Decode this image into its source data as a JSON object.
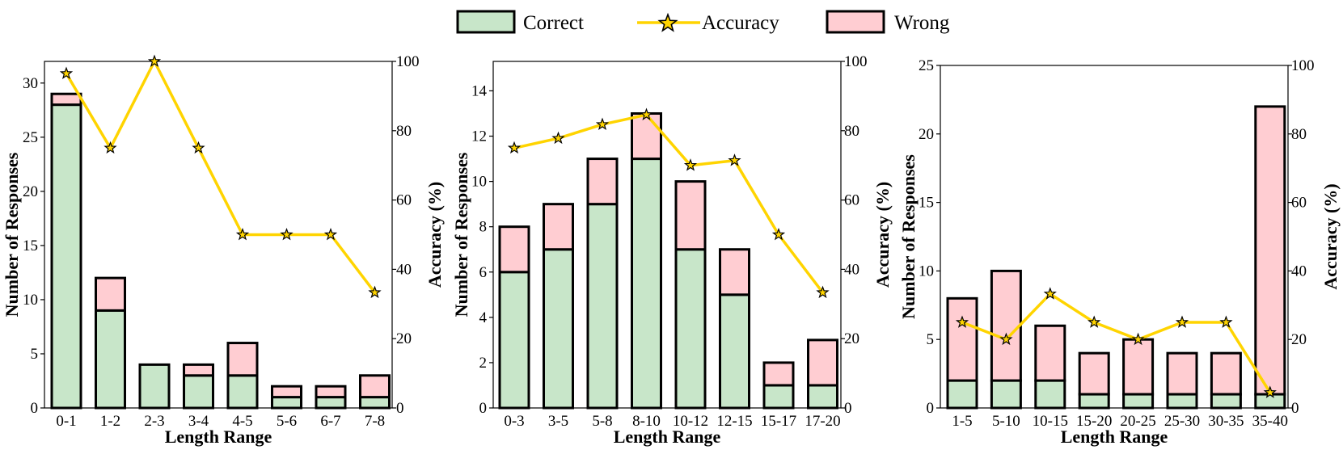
{
  "legend": {
    "correct": "Correct",
    "accuracy": "Accuracy",
    "wrong": "Wrong"
  },
  "colors": {
    "correct": "#c8e6c9",
    "wrong": "#ffcdd2",
    "accuracy": "#ffd400",
    "outline": "#000000"
  },
  "chart_data": [
    {
      "type": "bar",
      "stacked": true,
      "categories": [
        "0-1",
        "1-2",
        "2-3",
        "3-4",
        "4-5",
        "5-6",
        "6-7",
        "7-8"
      ],
      "series": [
        {
          "name": "Correct",
          "values": [
            28,
            9,
            4,
            3,
            3,
            1,
            1,
            1
          ]
        },
        {
          "name": "Wrong",
          "values": [
            1,
            3,
            0,
            1,
            3,
            1,
            1,
            2
          ]
        }
      ],
      "line_series": {
        "name": "Accuracy",
        "values": [
          96.5,
          75,
          100,
          75,
          50,
          50,
          50,
          33.3
        ]
      },
      "xlabel": "Length  Range",
      "ylabel": "Number  of Responses",
      "y2label": "Accuracy (%)",
      "ylim": [
        0,
        32
      ],
      "yticks": [
        0,
        5,
        10,
        15,
        20,
        25,
        30
      ],
      "y2lim": [
        0,
        100
      ],
      "y2ticks": [
        0,
        20,
        40,
        60,
        80,
        100
      ]
    },
    {
      "type": "bar",
      "stacked": true,
      "categories": [
        "0-3",
        "3-5",
        "5-8",
        "8-10",
        "10-12",
        "12-15",
        "15-17",
        "17-20"
      ],
      "series": [
        {
          "name": "Correct",
          "values": [
            6,
            7,
            9,
            11,
            7,
            5,
            1,
            1
          ]
        },
        {
          "name": "Wrong",
          "values": [
            2,
            2,
            2,
            2,
            3,
            2,
            1,
            2
          ]
        }
      ],
      "line_series": {
        "name": "Accuracy",
        "values": [
          75,
          77.8,
          81.8,
          84.6,
          70,
          71.4,
          50,
          33.3
        ]
      },
      "xlabel": "Length  Range",
      "ylabel": "Number  of Responses",
      "y2label": "Accuracy (%)",
      "ylim": [
        0,
        15.3
      ],
      "yticks": [
        0,
        2,
        4,
        6,
        8,
        10,
        12,
        14
      ],
      "y2lim": [
        0,
        100
      ],
      "y2ticks": [
        0,
        20,
        40,
        60,
        80,
        100
      ]
    },
    {
      "type": "bar",
      "stacked": true,
      "categories": [
        "1-5",
        "5-10",
        "10-15",
        "15-20",
        "20-25",
        "25-30",
        "30-35",
        "35-40"
      ],
      "series": [
        {
          "name": "Correct",
          "values": [
            2,
            2,
            2,
            1,
            1,
            1,
            1,
            1
          ]
        },
        {
          "name": "Wrong",
          "values": [
            6,
            8,
            4,
            3,
            4,
            3,
            3,
            21
          ]
        }
      ],
      "line_series": {
        "name": "Accuracy",
        "values": [
          25,
          20,
          33.3,
          25,
          20,
          25,
          25,
          4.5
        ]
      },
      "xlabel": "Length  Range",
      "ylabel": "Number  of Responses",
      "y2label": "Accuracy (%)",
      "ylim": [
        0,
        25
      ],
      "yticks": [
        0,
        5,
        10,
        15,
        20,
        25
      ],
      "y2lim": [
        0,
        100
      ],
      "y2ticks": [
        0,
        20,
        40,
        60,
        80,
        100
      ]
    }
  ]
}
